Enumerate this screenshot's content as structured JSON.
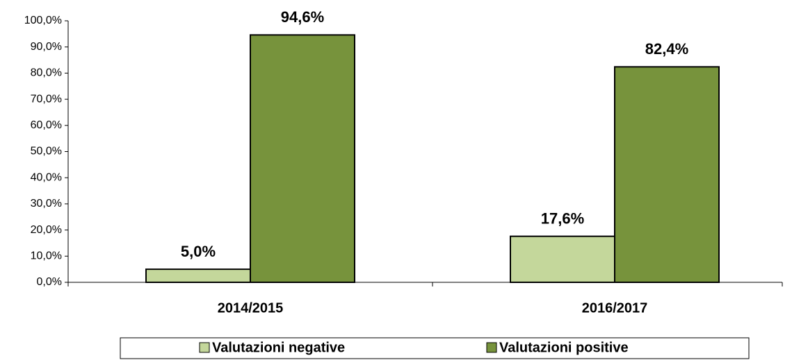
{
  "chart_data": {
    "type": "bar",
    "categories": [
      "2014/2015",
      "2016/2017"
    ],
    "series": [
      {
        "name": "Valutazioni negative",
        "color": "#c4d79b",
        "values": [
          5.0,
          17.6
        ],
        "value_labels": [
          "5,0%",
          "17,6%"
        ]
      },
      {
        "name": "Valutazioni positive",
        "color": "#77933c",
        "values": [
          94.6,
          82.4
        ],
        "value_labels": [
          "94,6%",
          "82,4%"
        ]
      }
    ],
    "ylim": [
      0,
      100
    ],
    "yticks": [
      {
        "value": 0,
        "label": "0,0%"
      },
      {
        "value": 10,
        "label": "10,0%"
      },
      {
        "value": 20,
        "label": "20,0%"
      },
      {
        "value": 30,
        "label": "30,0%"
      },
      {
        "value": 40,
        "label": "40,0%"
      },
      {
        "value": 50,
        "label": "50,0%"
      },
      {
        "value": 60,
        "label": "60,0%"
      },
      {
        "value": 70,
        "label": "70,0%"
      },
      {
        "value": 80,
        "label": "80,0%"
      },
      {
        "value": 90,
        "label": "90,0%"
      },
      {
        "value": 100,
        "label": "100,0%"
      }
    ],
    "legend": "bottom"
  }
}
